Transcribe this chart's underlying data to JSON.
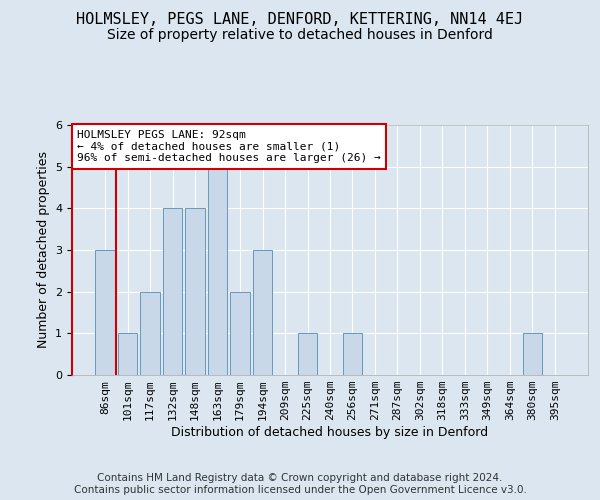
{
  "title": "HOLMSLEY, PEGS LANE, DENFORD, KETTERING, NN14 4EJ",
  "subtitle": "Size of property relative to detached houses in Denford",
  "xlabel": "Distribution of detached houses by size in Denford",
  "ylabel": "Number of detached properties",
  "categories": [
    "86sqm",
    "101sqm",
    "117sqm",
    "132sqm",
    "148sqm",
    "163sqm",
    "179sqm",
    "194sqm",
    "209sqm",
    "225sqm",
    "240sqm",
    "256sqm",
    "271sqm",
    "287sqm",
    "302sqm",
    "318sqm",
    "333sqm",
    "349sqm",
    "364sqm",
    "380sqm",
    "395sqm"
  ],
  "values": [
    3,
    1,
    2,
    4,
    4,
    5,
    2,
    3,
    0,
    1,
    0,
    1,
    0,
    0,
    0,
    0,
    0,
    0,
    0,
    1,
    0
  ],
  "bar_color": "#c8d8e8",
  "bar_edge_color": "#6699bb",
  "annotation_text": "HOLMSLEY PEGS LANE: 92sqm\n← 4% of detached houses are smaller (1)\n96% of semi-detached houses are larger (26) →",
  "annotation_box_edge_color": "#cc0000",
  "annotation_box_face_color": "#ffffff",
  "red_line_color": "#cc0000",
  "ylim": [
    0,
    6
  ],
  "yticks": [
    0,
    1,
    2,
    3,
    4,
    5,
    6
  ],
  "footer_text": "Contains HM Land Registry data © Crown copyright and database right 2024.\nContains public sector information licensed under the Open Government Licence v3.0.",
  "background_color": "#dce6f0",
  "plot_background_color": "#dce6f0",
  "title_fontsize": 11,
  "subtitle_fontsize": 10,
  "xlabel_fontsize": 9,
  "ylabel_fontsize": 9,
  "tick_fontsize": 8,
  "annotation_fontsize": 8,
  "footer_fontsize": 7.5
}
